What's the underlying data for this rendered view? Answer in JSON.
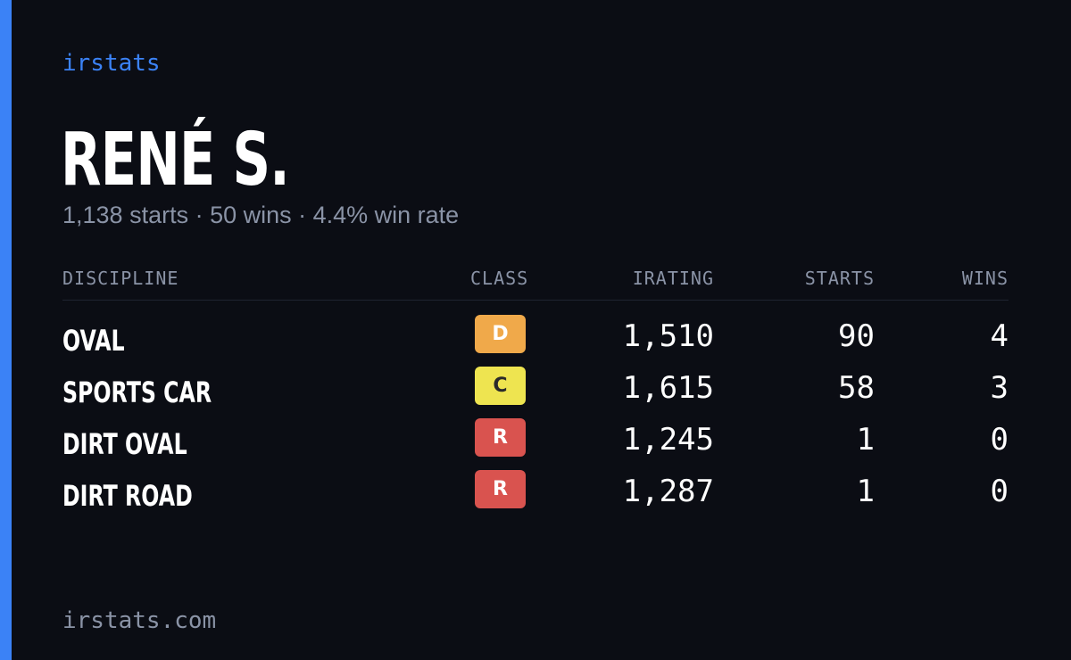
{
  "brand": "irstats",
  "driver": {
    "name": "RENÉ S.",
    "summary": "1,138 starts · 50 wins · 4.4% win rate"
  },
  "table": {
    "headers": {
      "discipline": "DISCIPLINE",
      "class": "CLASS",
      "irating": "IRATING",
      "starts": "STARTS",
      "wins": "WINS"
    },
    "rows": [
      {
        "discipline": "OVAL",
        "class": "D",
        "class_bg": "#f0a94a",
        "class_fg": "#ffffff",
        "irating": "1,510",
        "starts": "90",
        "wins": "4"
      },
      {
        "discipline": "SPORTS CAR",
        "class": "C",
        "class_bg": "#eee450",
        "class_fg": "#2a2a2a",
        "irating": "1,615",
        "starts": "58",
        "wins": "3"
      },
      {
        "discipline": "DIRT OVAL",
        "class": "R",
        "class_bg": "#d9534f",
        "class_fg": "#ffffff",
        "irating": "1,245",
        "starts": "1",
        "wins": "0"
      },
      {
        "discipline": "DIRT ROAD",
        "class": "R",
        "class_bg": "#d9534f",
        "class_fg": "#ffffff",
        "irating": "1,287",
        "starts": "1",
        "wins": "0"
      }
    ]
  },
  "footer": "irstats.com",
  "colors": {
    "background": "#0b0d14",
    "accent": "#3b82f6",
    "muted_text": "#8a93a6",
    "primary_text": "#ffffff"
  }
}
